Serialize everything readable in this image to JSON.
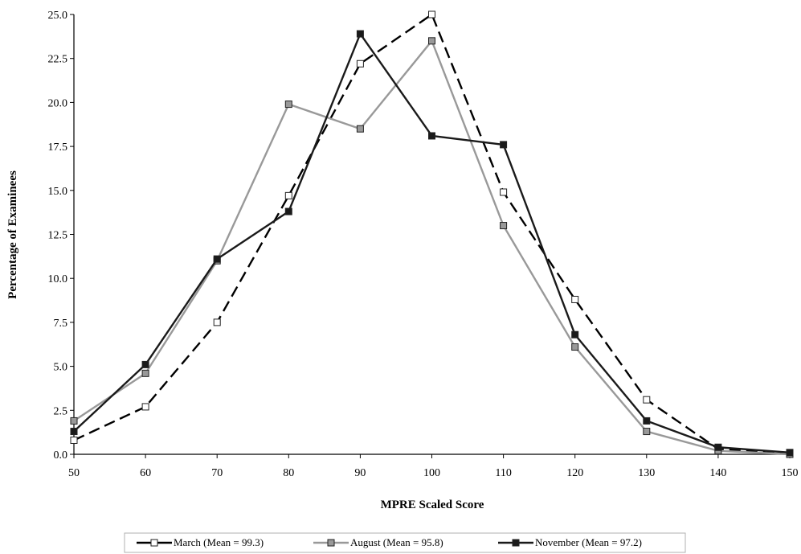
{
  "chart_data": {
    "type": "line",
    "title": "",
    "xlabel": "MPRE Scaled Score",
    "ylabel": "Percentage of Examinees",
    "xlim": [
      50,
      150
    ],
    "ylim": [
      0,
      25
    ],
    "x_ticks": [
      "50",
      "60",
      "70",
      "80",
      "90",
      "100",
      "110",
      "120",
      "130",
      "140",
      "150"
    ],
    "y_ticks": [
      "0.0",
      "2.5",
      "5.0",
      "7.5",
      "10.0",
      "12.5",
      "15.0",
      "17.5",
      "20.0",
      "22.5",
      "25.0"
    ],
    "grid": false,
    "legend_position": "bottom",
    "x": [
      50,
      60,
      70,
      80,
      90,
      100,
      110,
      120,
      130,
      140,
      150
    ],
    "series": [
      {
        "name": "March (Mean = 99.3)",
        "values": [
          0.8,
          2.7,
          7.5,
          14.7,
          22.2,
          25.0,
          14.9,
          8.8,
          3.1,
          0.3,
          0.0
        ],
        "line_color": "#000000",
        "marker_fill": "#ffffff",
        "dashed": true
      },
      {
        "name": "August (Mean = 95.8)",
        "values": [
          1.9,
          4.6,
          11.0,
          19.9,
          18.5,
          23.5,
          13.0,
          6.1,
          1.3,
          0.2,
          0.0
        ],
        "line_color": "#999999",
        "marker_fill": "#999999",
        "dashed": false
      },
      {
        "name": "November (Mean = 97.2)",
        "values": [
          1.3,
          5.1,
          11.1,
          13.8,
          23.9,
          18.1,
          17.6,
          6.8,
          1.9,
          0.4,
          0.1
        ],
        "line_color": "#1a1a1a",
        "marker_fill": "#1a1a1a",
        "dashed": false
      }
    ]
  }
}
